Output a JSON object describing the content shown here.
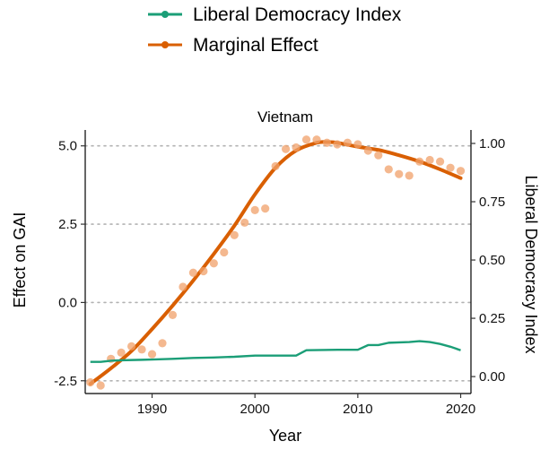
{
  "legend": {
    "items": [
      {
        "label": "Liberal Democracy Index",
        "color": "#1b9e77"
      },
      {
        "label": "Marginal Effect",
        "color": "#d95f02"
      }
    ]
  },
  "chart_data": {
    "type": "line",
    "title": "Vietnam",
    "xlabel": "Year",
    "ylabel": "Effect on GAI",
    "y2label": "Liberal Democracy Index",
    "xlim": [
      1983.5,
      2021
    ],
    "ylim": [
      -2.85,
      5.45
    ],
    "y2lim": [
      -0.065,
      1.05
    ],
    "x_ticks": [
      1990,
      2000,
      2010,
      2020
    ],
    "y_ticks": [
      5.0,
      2.5,
      0.0,
      -2.5
    ],
    "y_tick_labels": [
      "5.0",
      "2.5",
      "0.0",
      "-2.5"
    ],
    "y2_ticks": [
      1.0,
      0.75,
      0.5,
      0.25,
      0.0
    ],
    "y2_tick_labels": [
      "1.00",
      "0.75",
      "0.50",
      "0.25",
      "0.00"
    ],
    "grid": "horizontal-dotted",
    "legend_position": "top",
    "series": [
      {
        "name": "Marginal Effect",
        "axis": "left",
        "style": "smooth-line",
        "color": "#d95f02",
        "x": [
          1984,
          1986,
          1988,
          1990,
          1992,
          1994,
          1996,
          1998,
          2000,
          2002,
          2004,
          2006,
          2007,
          2008,
          2010,
          2012,
          2014,
          2016,
          2018,
          2020
        ],
        "values": [
          -2.6,
          -2.1,
          -1.55,
          -0.85,
          -0.1,
          0.7,
          1.55,
          2.45,
          3.45,
          4.3,
          4.85,
          5.1,
          5.12,
          5.1,
          4.97,
          4.87,
          4.7,
          4.5,
          4.25,
          3.97
        ]
      },
      {
        "name": "",
        "axis": "left",
        "style": "points",
        "color": "#f0a06a",
        "x": [
          1984,
          1985,
          1986,
          1987,
          1988,
          1989,
          1990,
          1991,
          1992,
          1993,
          1994,
          1995,
          1996,
          1997,
          1998,
          1999,
          2000,
          2001,
          2002,
          2003,
          2004,
          2005,
          2006,
          2007,
          2008,
          2009,
          2010,
          2011,
          2012,
          2013,
          2014,
          2015,
          2016,
          2017,
          2018,
          2019,
          2020
        ],
        "values": [
          -2.55,
          -2.65,
          -1.8,
          -1.6,
          -1.4,
          -1.5,
          -1.65,
          -1.3,
          -0.4,
          0.5,
          0.95,
          1.0,
          1.25,
          1.6,
          2.15,
          2.55,
          2.95,
          3.0,
          4.35,
          4.9,
          4.95,
          5.2,
          5.2,
          5.1,
          5.05,
          5.1,
          5.05,
          4.85,
          4.7,
          4.25,
          4.1,
          4.05,
          4.5,
          4.55,
          4.5,
          4.3,
          4.2
        ]
      },
      {
        "name": "Liberal Democracy Index",
        "axis": "right",
        "style": "line",
        "color": "#1b9e77",
        "x": [
          1984,
          1985,
          1986,
          1987,
          1988,
          1989,
          1990,
          1992,
          1994,
          1996,
          1998,
          2000,
          2002,
          2004,
          2005,
          2008,
          2010,
          2011,
          2012,
          2013,
          2015,
          2016,
          2017,
          2018,
          2019,
          2020
        ],
        "values": [
          0.063,
          0.063,
          0.068,
          0.07,
          0.071,
          0.072,
          0.073,
          0.076,
          0.08,
          0.082,
          0.085,
          0.09,
          0.09,
          0.09,
          0.113,
          0.115,
          0.115,
          0.135,
          0.135,
          0.145,
          0.148,
          0.152,
          0.148,
          0.14,
          0.128,
          0.113
        ]
      }
    ]
  }
}
